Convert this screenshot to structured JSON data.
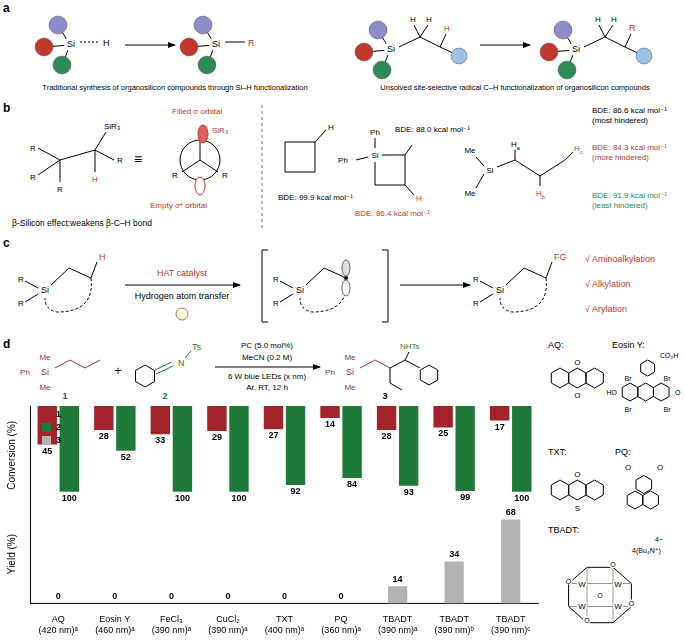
{
  "chart_data": {
    "type": "bar",
    "categories": [
      "AQ\n(420 nm)ᵃ",
      "Eosin Y\n(460 nm)ᵃ",
      "FeCl₃\n(390 nm)ᵃ",
      "CuCl₂\n(390 nm)ᵃ",
      "TXT\n(400 nm)ᵃ",
      "PQ\n(360 nm)ᵃ",
      "TBADT\n(390 nm)ᵃ",
      "TBADT\n(390 nm)ᵇ",
      "TBADT\n(390 nm)ᶜ"
    ],
    "series": [
      {
        "name": "1",
        "color": "#a3232b",
        "axis": "y2",
        "values": [
          45,
          28,
          33,
          29,
          27,
          14,
          28,
          25,
          17
        ]
      },
      {
        "name": "2",
        "color": "#1f7a3a",
        "axis": "y2",
        "values": [
          100,
          52,
          100,
          100,
          92,
          84,
          93,
          99,
          100
        ]
      },
      {
        "name": "3",
        "color": "#b3b3b3",
        "values": [
          0,
          0,
          0,
          0,
          0,
          0,
          14,
          34,
          68
        ]
      }
    ],
    "ylabel": "Yield (%)",
    "y2label": "Conversion (%)",
    "ylim": [
      0,
      80
    ],
    "y2lim": [
      0,
      115
    ],
    "grid": false,
    "legend": "upper left",
    "data_labels": true,
    "tick_labels": "x"
  },
  "figure": {
    "panel_labels": [
      "a",
      "b",
      "c",
      "d"
    ],
    "atoms": {
      "si": "Si",
      "h": "H",
      "r": "R",
      "me": "Me",
      "ph": "Ph",
      "o": "O",
      "s": "S",
      "n": "N",
      "w": "W",
      "br": "Br"
    },
    "a": {
      "left_caption": "Traditional synthesis of organosilicon compounds through Si–H functionalization",
      "right_caption": "Unsolved site-selective radical C–H functionalization of organosilicon compounds"
    },
    "b": {
      "equiv": "≡",
      "sir3": "SiR₃",
      "filled": "Filled σ orbital",
      "empty": "Empty σ* orbital",
      "caption": "β-Silicon effect:weakens β-C–H bond",
      "cyclobutane_bde": "BDE: 99.9 kcal mol⁻¹",
      "silacyclobutane_bde": [
        "BDE: 88.0 kcal mol⁻¹",
        "BDE: 86.4 kcal mol⁻¹"
      ],
      "chain_h_subscripts": [
        "a",
        "b",
        "c"
      ],
      "chain_bde": [
        [
          "BDE: 86.6 kcal mol⁻¹",
          "(most hindered)"
        ],
        [
          "BDE: 84.3 kcal mol⁻¹",
          "(more hindered)"
        ],
        [
          "BDE: 91.9 kcal mol⁻¹",
          "(least hindered)"
        ]
      ]
    },
    "c": {
      "catalyst": "HAT catalyst",
      "process": "Hydrogen atom transfer",
      "fg": "FG",
      "outcomes": [
        "√ Aminoalkylation",
        "√ Alkylation",
        "√ Arylation"
      ]
    },
    "d": {
      "compounds": [
        "1",
        "2",
        "3"
      ],
      "plus": "+",
      "ts": "Ts",
      "nhts": "NHTs",
      "conditions_above": [
        "PC (5.0 mol%)",
        "MeCN (0.2 M)"
      ],
      "conditions_below": [
        "6 W blue LEDs (x nm)",
        "Ar, RT, 12 h"
      ],
      "catalysts": [
        "AQ:",
        "Eosin Y:",
        "TXT:",
        "PQ:",
        "TBADT:"
      ],
      "eosin_groups": [
        "HO",
        "CO₂H"
      ],
      "tbadt_charge": "4−",
      "tbadt_counter": "4(Bu₄N⁺)"
    }
  }
}
